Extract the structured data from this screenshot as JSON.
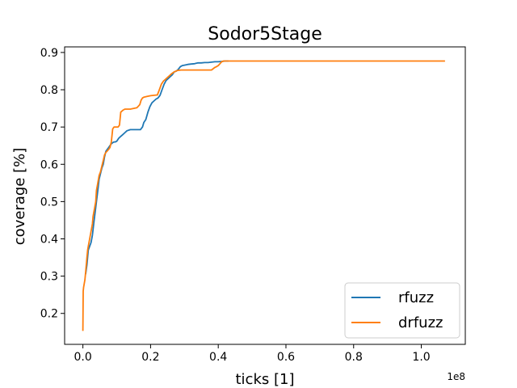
{
  "chart_data": {
    "type": "line",
    "title": "Sodor5Stage",
    "xlabel": "ticks [1]",
    "ylabel": "coverage [%]",
    "x_offset_label": "1e8",
    "xlim": [
      -0.054,
      1.13
    ],
    "ylim": [
      0.117,
      0.915
    ],
    "xticks": [
      0.0,
      0.2,
      0.4,
      0.6,
      0.8,
      1.0
    ],
    "xtick_labels": [
      "0.0",
      "0.2",
      "0.4",
      "0.6",
      "0.8",
      "1.0"
    ],
    "yticks": [
      0.2,
      0.3,
      0.4,
      0.5,
      0.6,
      0.7,
      0.8,
      0.9
    ],
    "ytick_labels": [
      "0.2",
      "0.3",
      "0.4",
      "0.5",
      "0.6",
      "0.7",
      "0.8",
      "0.9"
    ],
    "grid": false,
    "legend_position": "lower-right",
    "series": [
      {
        "name": "rfuzz",
        "color": "#1f77b4",
        "x": [
          0.008,
          0.012,
          0.016,
          0.02,
          0.024,
          0.028,
          0.032,
          0.036,
          0.04,
          0.044,
          0.048,
          0.052,
          0.056,
          0.06,
          0.064,
          0.068,
          0.072,
          0.076,
          0.08,
          0.084,
          0.088,
          0.092,
          0.096,
          0.1,
          0.106,
          0.112,
          0.118,
          0.124,
          0.13,
          0.14,
          0.15,
          0.16,
          0.17,
          0.176,
          0.18,
          0.186,
          0.192,
          0.198,
          0.204,
          0.21,
          0.216,
          0.222,
          0.228,
          0.234,
          0.24,
          0.246,
          0.252,
          0.258,
          0.264,
          0.27,
          0.276,
          0.282,
          0.288,
          0.294,
          0.3,
          0.31,
          0.32,
          0.33,
          0.34,
          0.35,
          0.36,
          0.37,
          0.38,
          0.39,
          0.4,
          0.41,
          0.42,
          0.425,
          0.43
        ],
        "y": [
          0.305,
          0.33,
          0.37,
          0.38,
          0.39,
          0.41,
          0.44,
          0.47,
          0.5,
          0.53,
          0.56,
          0.575,
          0.59,
          0.6,
          0.62,
          0.635,
          0.64,
          0.645,
          0.65,
          0.655,
          0.658,
          0.66,
          0.66,
          0.662,
          0.67,
          0.675,
          0.68,
          0.685,
          0.69,
          0.693,
          0.693,
          0.693,
          0.693,
          0.7,
          0.712,
          0.72,
          0.74,
          0.755,
          0.765,
          0.77,
          0.775,
          0.778,
          0.785,
          0.8,
          0.815,
          0.825,
          0.83,
          0.835,
          0.84,
          0.848,
          0.85,
          0.855,
          0.862,
          0.865,
          0.866,
          0.868,
          0.869,
          0.87,
          0.872,
          0.872,
          0.873,
          0.873,
          0.874,
          0.875,
          0.875,
          0.876,
          0.877,
          0.877,
          0.877
        ]
      },
      {
        "name": "drfuzz",
        "color": "#ff7f0e",
        "x": [
          0.0,
          0.001,
          0.002,
          0.004,
          0.006,
          0.008,
          0.01,
          0.012,
          0.014,
          0.016,
          0.02,
          0.024,
          0.028,
          0.03,
          0.034,
          0.038,
          0.04,
          0.044,
          0.048,
          0.052,
          0.056,
          0.06,
          0.064,
          0.068,
          0.072,
          0.076,
          0.08,
          0.084,
          0.088,
          0.092,
          0.1,
          0.104,
          0.108,
          0.112,
          0.118,
          0.124,
          0.13,
          0.14,
          0.15,
          0.16,
          0.168,
          0.172,
          0.176,
          0.18,
          0.19,
          0.2,
          0.21,
          0.22,
          0.226,
          0.232,
          0.238,
          0.244,
          0.25,
          0.256,
          0.262,
          0.27,
          0.28,
          0.29,
          0.3,
          0.32,
          0.34,
          0.36,
          0.38,
          0.39,
          0.395,
          0.4,
          0.405,
          0.41,
          0.416,
          0.42,
          0.5,
          0.6,
          0.7,
          0.8,
          0.9,
          1.0,
          1.07
        ],
        "y": [
          0.153,
          0.26,
          0.27,
          0.28,
          0.29,
          0.31,
          0.33,
          0.35,
          0.37,
          0.38,
          0.4,
          0.42,
          0.44,
          0.46,
          0.48,
          0.5,
          0.53,
          0.55,
          0.57,
          0.58,
          0.595,
          0.61,
          0.625,
          0.632,
          0.636,
          0.64,
          0.645,
          0.66,
          0.695,
          0.7,
          0.7,
          0.7,
          0.705,
          0.74,
          0.745,
          0.748,
          0.748,
          0.748,
          0.75,
          0.752,
          0.76,
          0.772,
          0.778,
          0.78,
          0.782,
          0.784,
          0.785,
          0.786,
          0.8,
          0.815,
          0.823,
          0.828,
          0.833,
          0.838,
          0.843,
          0.848,
          0.852,
          0.853,
          0.853,
          0.853,
          0.853,
          0.853,
          0.853,
          0.86,
          0.862,
          0.865,
          0.87,
          0.875,
          0.877,
          0.877,
          0.877,
          0.877,
          0.877,
          0.877,
          0.877,
          0.877,
          0.877
        ]
      }
    ]
  }
}
